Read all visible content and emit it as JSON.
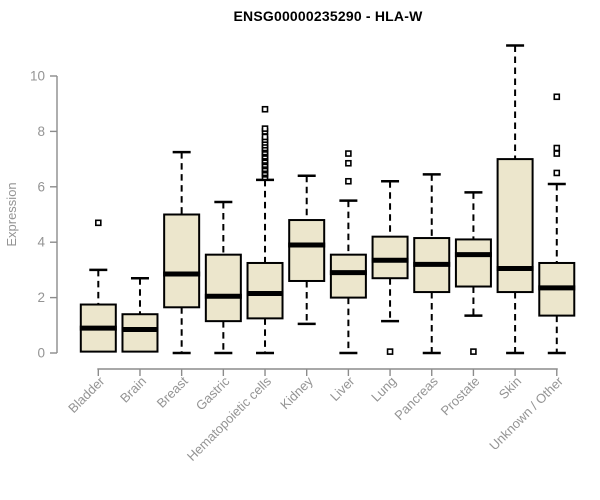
{
  "chart_data": {
    "type": "boxplot",
    "title": "ENSG00000235290 - HLA-W",
    "xlabel": "",
    "ylabel": "Expression",
    "ylim": [
      0,
      11.2
    ],
    "yticks": [
      0,
      2,
      4,
      6,
      8,
      10
    ],
    "grid": false,
    "legend": "none",
    "categories": [
      "Bladder",
      "Brain",
      "Breast",
      "Gastric",
      "Hematopoietic cells",
      "Kidney",
      "Liver",
      "Lung",
      "Pancreas",
      "Prostate",
      "Skin",
      "Unknown / Other"
    ],
    "boxes": [
      {
        "category": "Bladder",
        "whisker_low": 0.05,
        "q1": 0.05,
        "median": 0.9,
        "q3": 1.75,
        "whisker_high": 3.0,
        "outliers": [
          4.7
        ]
      },
      {
        "category": "Brain",
        "whisker_low": 0.05,
        "q1": 0.05,
        "median": 0.85,
        "q3": 1.4,
        "whisker_high": 2.7,
        "outliers": []
      },
      {
        "category": "Breast",
        "whisker_low": 0.0,
        "q1": 1.65,
        "median": 2.85,
        "q3": 5.0,
        "whisker_high": 7.25,
        "outliers": []
      },
      {
        "category": "Gastric",
        "whisker_low": 0.0,
        "q1": 1.15,
        "median": 2.05,
        "q3": 3.55,
        "whisker_high": 5.45,
        "outliers": []
      },
      {
        "category": "Hematopoietic cells",
        "whisker_low": 0.0,
        "q1": 1.25,
        "median": 2.15,
        "q3": 3.25,
        "whisker_high": 6.25,
        "outliers": [
          6.35,
          6.45,
          6.5,
          6.6,
          6.65,
          6.75,
          6.8,
          6.9,
          6.95,
          7.05,
          7.1,
          7.2,
          7.25,
          7.35,
          7.4,
          7.5,
          7.6,
          7.7,
          7.8,
          8.0,
          8.1,
          8.8
        ]
      },
      {
        "category": "Kidney",
        "whisker_low": 1.05,
        "q1": 2.6,
        "median": 3.9,
        "q3": 4.8,
        "whisker_high": 6.4,
        "outliers": []
      },
      {
        "category": "Liver",
        "whisker_low": 0.0,
        "q1": 2.0,
        "median": 2.9,
        "q3": 3.55,
        "whisker_high": 5.5,
        "outliers": [
          6.2,
          6.85,
          7.2
        ]
      },
      {
        "category": "Lung",
        "whisker_low": 1.15,
        "q1": 2.7,
        "median": 3.35,
        "q3": 4.2,
        "whisker_high": 6.2,
        "outliers": [
          0.05
        ]
      },
      {
        "category": "Pancreas",
        "whisker_low": 0.0,
        "q1": 2.2,
        "median": 3.2,
        "q3": 4.15,
        "whisker_high": 6.45,
        "outliers": []
      },
      {
        "category": "Prostate",
        "whisker_low": 1.35,
        "q1": 2.4,
        "median": 3.55,
        "q3": 4.1,
        "whisker_high": 5.8,
        "outliers": [
          0.05
        ]
      },
      {
        "category": "Skin",
        "whisker_low": 0.0,
        "q1": 2.2,
        "median": 3.05,
        "q3": 7.0,
        "whisker_high": 11.1,
        "outliers": []
      },
      {
        "category": "Unknown / Other",
        "whisker_low": 0.0,
        "q1": 1.35,
        "median": 2.35,
        "q3": 3.25,
        "whisker_high": 6.1,
        "outliers": [
          6.5,
          7.2,
          7.4,
          9.25
        ]
      }
    ],
    "colors": {
      "box_fill": "#ece6cc",
      "box_border": "#000000",
      "median": "#000000",
      "axis": "#8c8c8c",
      "tick_label": "#949494",
      "title": "#000000",
      "background": "#ffffff"
    }
  }
}
